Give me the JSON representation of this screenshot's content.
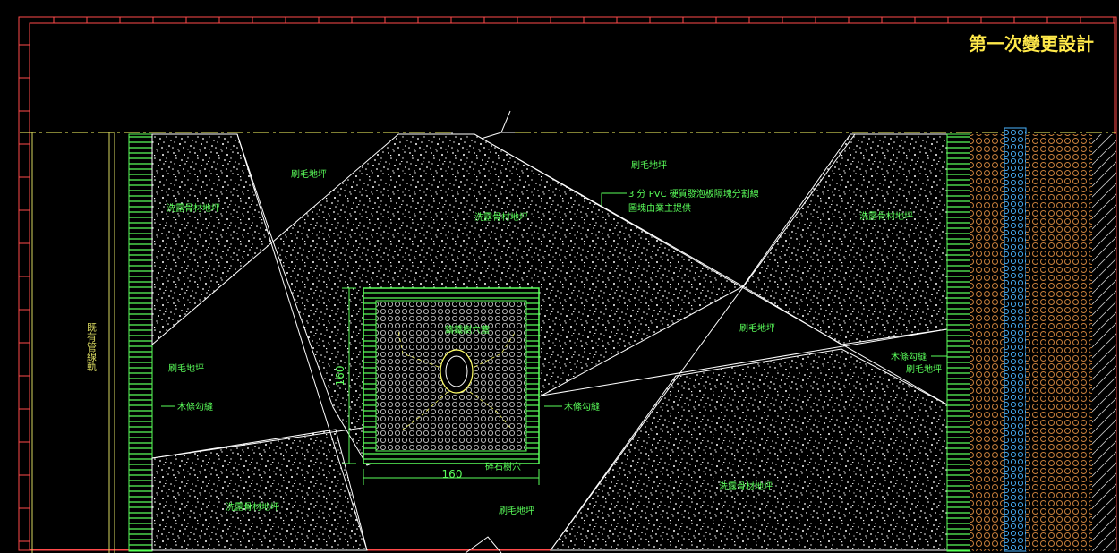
{
  "title": "第一次變更設計",
  "labels": {
    "shave_top_left": "刷毛地坪",
    "shave_top_right": "刷毛地坪",
    "shave_center_right": "刷毛地坪",
    "shave_left": "刷毛地坪",
    "shave_right": "刷毛地坪",
    "shave_bottom": "刷毛地坪",
    "pebble_top_left": "洗露骨材地坪",
    "pebble_top_center": "洗露骨材地坪",
    "pebble_top_right": "洗露骨材地坪",
    "pebble_bottom_left": "洗露骨材地坪",
    "pebble_bottom_right": "洗露骨材地坪",
    "wood_joint_left": "木條勾縫",
    "wood_joint_center": "木條勾縫",
    "wood_joint_right": "木條勾縫",
    "pvc_note_line1": "3 分 PVC 硬質發泡板隔塊分割線",
    "pvc_note_line2": "圖塊由業主提供",
    "tree_grate": "鑄鐵樹穴蓋",
    "tree_pit": "碎石樹穴"
  },
  "vertical_label": "既有管線軌",
  "dimensions": {
    "width": "160",
    "height": "160"
  },
  "colors": {
    "background": "#000000",
    "frame": "#ff4a4a",
    "title": "#ffe94a",
    "annotation": "#5aff5a",
    "linework": "#ffffff",
    "hatch_orange": "#c8803c",
    "hatch_cyan": "#4ab4ff"
  }
}
